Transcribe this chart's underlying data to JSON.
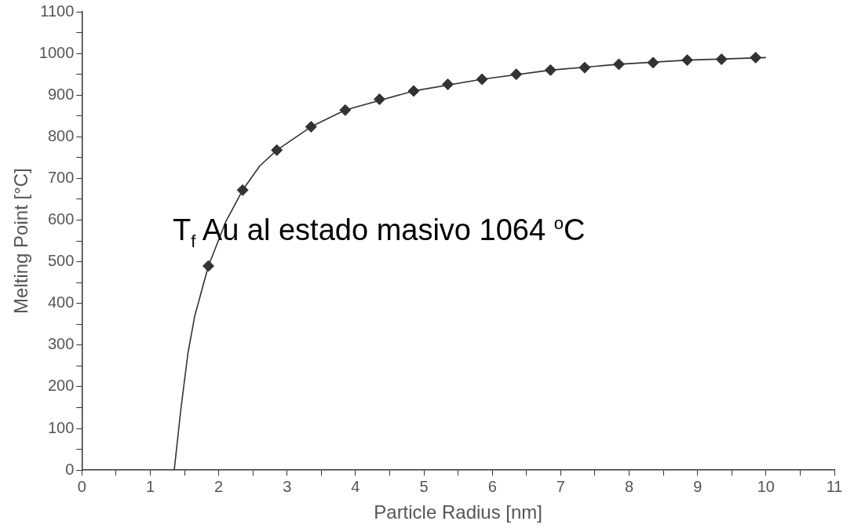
{
  "chart_data": {
    "type": "scatter",
    "xlabel": "Particle Radius [nm]",
    "ylabel": "Melting Point [°C]",
    "xlim": [
      0,
      11
    ],
    "ylim": [
      0,
      1100
    ],
    "xticks": [
      0,
      {
        "value": 0.5,
        "label": null
      },
      1,
      {
        "value": 1.5,
        "label": null
      },
      2,
      {
        "value": 2.5,
        "label": null
      },
      3,
      {
        "value": 3.5,
        "label": null
      },
      4,
      {
        "value": 4.5,
        "label": null
      },
      5,
      {
        "value": 5.5,
        "label": null
      },
      6,
      {
        "value": 6.5,
        "label": null
      },
      7,
      {
        "value": 7.5,
        "label": null
      },
      8,
      {
        "value": 8.5,
        "label": null
      },
      9,
      {
        "value": 9.5,
        "label": null
      },
      10,
      {
        "value": 10.5,
        "label": null
      },
      11
    ],
    "yticks": [
      0,
      {
        "value": 50,
        "label": null
      },
      100,
      {
        "value": 150,
        "label": null
      },
      200,
      {
        "value": 250,
        "label": null
      },
      300,
      {
        "value": 350,
        "label": null
      },
      400,
      {
        "value": 450,
        "label": null
      },
      500,
      {
        "value": 550,
        "label": null
      },
      600,
      {
        "value": 650,
        "label": null
      },
      700,
      {
        "value": 750,
        "label": null
      },
      800,
      {
        "value": 850,
        "label": null
      },
      900,
      {
        "value": 950,
        "label": null
      },
      1000,
      {
        "value": 1050,
        "label": null
      },
      1100
    ],
    "grid": false,
    "legend": false,
    "marker": "diamond",
    "annotations": [
      "T$_{f}$ Au al estado masivo 1064 $^{o}$C"
    ],
    "series": [
      {
        "type": "line",
        "marker": "none",
        "line_style": "solid",
        "color": "#333333",
        "x": [
          1.35,
          1.45,
          1.55,
          1.65,
          1.85,
          2.1,
          2.35,
          2.6,
          2.85,
          3.35,
          3.85,
          4.85,
          5.85,
          6.85,
          7.85,
          8.85,
          10.0
        ],
        "values": [
          0,
          150,
          280,
          370,
          490,
          595,
          672,
          730,
          768,
          824,
          864,
          910,
          938,
          960,
          974,
          984,
          990
        ]
      },
      {
        "color": "#333333",
        "x": [
          1.85,
          2.35,
          2.85,
          3.35,
          3.85,
          4.35,
          4.85,
          5.35,
          5.85,
          6.35,
          6.85,
          7.35,
          7.85,
          8.35,
          8.85,
          9.35,
          9.85
        ],
        "values": [
          490,
          672,
          768,
          824,
          864,
          890,
          910,
          926,
          938,
          950,
          960,
          966,
          974,
          978,
          984,
          986,
          990
        ]
      }
    ]
  }
}
